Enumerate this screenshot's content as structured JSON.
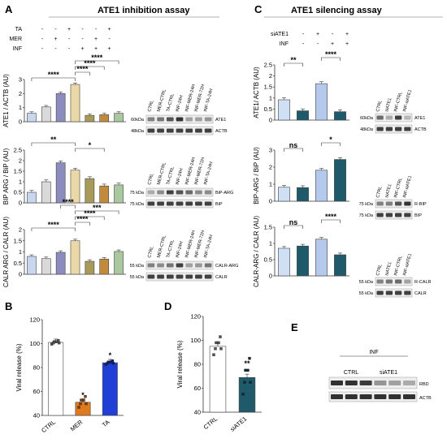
{
  "figure": {
    "panel_labels": {
      "a": "A",
      "b": "B",
      "c": "C",
      "d": "D",
      "e": "E"
    },
    "panel_a": {
      "title": "ATE1 inhibition assay",
      "treatments": [
        {
          "name": "TA",
          "marks": [
            "-",
            "-",
            "+",
            "-",
            "-",
            "+"
          ]
        },
        {
          "name": "MER",
          "marks": [
            "-",
            "+",
            "-",
            "-",
            "+",
            "-"
          ]
        },
        {
          "name": "INF",
          "marks": [
            "-",
            "-",
            "-",
            "+",
            "+",
            "+"
          ]
        }
      ],
      "lane_labels_6": [
        "CTRL",
        "MER-CTRL",
        "TA-CTRL",
        "INF-24H",
        "INF-MER-24H",
        "INF-MER-72H",
        "INF-TA-24H"
      ],
      "lane_labels_7": [
        "CTRL",
        "MER-CTRL",
        "TA-CTRL",
        "INF-24H",
        "INF-MER-24H",
        "INF-MER-72H",
        "INF-TA-24H"
      ],
      "blots": [
        {
          "markers": [
            "60kDa",
            "48kDa"
          ],
          "bands": [
            "ATE1",
            "ACTB"
          ]
        },
        {
          "markers": [
            "75 kDa",
            "75 kDa"
          ],
          "bands": [
            "BiP-ARG",
            "BiP"
          ]
        },
        {
          "markers": [
            "55 kDa",
            "55 kDa"
          ],
          "bands": [
            "CALR-ARG",
            "CALR"
          ]
        }
      ]
    },
    "panel_c": {
      "title": "ATE1 silencing assay",
      "treatments": [
        {
          "name": "siATE1",
          "marks": [
            "-",
            "+",
            "-",
            "+"
          ]
        },
        {
          "name": "INF",
          "marks": [
            "-",
            "-",
            "+",
            "+"
          ]
        }
      ],
      "lane_labels": [
        "CTRL",
        "siATE1",
        "INF-CTRL",
        "INF-siATE1"
      ],
      "blots": [
        {
          "markers": [
            "60kDa",
            "48kDa"
          ],
          "bands": [
            "ATE1",
            "ACTB"
          ]
        },
        {
          "markers": [
            "75 kDa",
            "75 kDa"
          ],
          "bands": [
            "R-BIP",
            "BIP"
          ]
        },
        {
          "markers": [
            "55 kDa",
            "55 kDa"
          ],
          "bands": [
            "R-CALR",
            "CALR"
          ]
        }
      ]
    },
    "panel_e": {
      "group_label": "INF",
      "lanes": [
        "CTRL",
        "siATE1"
      ],
      "bands": [
        "RBD",
        "ACTB"
      ]
    }
  },
  "chart_data": [
    {
      "id": "a1",
      "type": "bar",
      "ylabel": "ATE1 / ACTB (AU)",
      "ylim": [
        0,
        3
      ],
      "yticks": [
        0,
        1,
        2,
        3
      ],
      "values": [
        0.6,
        1.05,
        2.0,
        2.65,
        0.45,
        0.5,
        0.6
      ],
      "colors": [
        "#c9d7ee",
        "#d9d9d9",
        "#8c8cbf",
        "#ead8a8",
        "#a89a58",
        "#c28a3c",
        "#a9c8a0"
      ],
      "annotations": [
        "****",
        "****",
        "****",
        "****"
      ]
    },
    {
      "id": "a2",
      "type": "bar",
      "ylabel": "BIP ARG / BiP (AU)",
      "ylim": [
        0,
        2.5
      ],
      "yticks": [
        0.0,
        0.5,
        1.0,
        1.5,
        2.0,
        2.5
      ],
      "values": [
        0.5,
        1.0,
        1.9,
        1.55,
        1.15,
        0.8,
        0.85
      ],
      "colors": [
        "#c9d7ee",
        "#d9d9d9",
        "#8c8cbf",
        "#ead8a8",
        "#a89a58",
        "#c28a3c",
        "#a9c8a0"
      ],
      "annotations": [
        "**",
        "*"
      ]
    },
    {
      "id": "a3",
      "type": "bar",
      "ylabel": "CALR ARG / CALR (AU)",
      "ylim": [
        0,
        2.0
      ],
      "yticks": [
        0.0,
        0.5,
        1.0,
        1.5,
        2.0
      ],
      "values": [
        0.8,
        0.7,
        0.98,
        1.5,
        0.58,
        0.68,
        1.02
      ],
      "colors": [
        "#c9d7ee",
        "#d9d9d9",
        "#8c8cbf",
        "#ead8a8",
        "#a89a58",
        "#c28a3c",
        "#a9c8a0"
      ],
      "annotations": [
        "****",
        "****",
        "****",
        "***",
        "****"
      ]
    },
    {
      "id": "b",
      "type": "bar",
      "ylabel": "Viral release (%)",
      "categories": [
        "CTRL",
        "MER",
        "TA"
      ],
      "ylim": [
        40,
        120
      ],
      "yticks": [
        40,
        60,
        80,
        100,
        120
      ],
      "values": [
        101,
        51,
        84
      ],
      "colors": [
        "#ffffff",
        "#e07a20",
        "#1f3fd6"
      ],
      "annotations": [
        "*",
        "*"
      ]
    },
    {
      "id": "c1",
      "type": "bar",
      "ylabel": "ATE1/ ACTB (AU)",
      "ylim": [
        0,
        2.5
      ],
      "yticks": [
        0.0,
        0.5,
        1.0,
        1.5,
        2.0,
        2.5
      ],
      "values": [
        0.92,
        0.42,
        1.65,
        0.38
      ],
      "colors": [
        "#cfe0f5",
        "#1f5a6a",
        "#b5c9ec",
        "#1f5a6a"
      ],
      "annotations": [
        "**",
        "****"
      ]
    },
    {
      "id": "c2",
      "type": "bar",
      "ylabel": "BIP-ARG / BiP (AU)",
      "ylim": [
        0,
        3
      ],
      "yticks": [
        0,
        1,
        2,
        3
      ],
      "values": [
        0.82,
        0.8,
        1.82,
        2.45
      ],
      "colors": [
        "#cfe0f5",
        "#1f5a6a",
        "#b5c9ec",
        "#1f5a6a"
      ],
      "annotations": [
        "ns",
        "*"
      ]
    },
    {
      "id": "c3",
      "type": "bar",
      "ylabel": "CALR-ARG / CALR (AU)",
      "ylim": [
        0,
        1.5
      ],
      "yticks": [
        0.0,
        0.5,
        1.0,
        1.5
      ],
      "values": [
        0.85,
        0.92,
        1.13,
        0.65
      ],
      "colors": [
        "#cfe0f5",
        "#1f5a6a",
        "#b5c9ec",
        "#1f5a6a"
      ],
      "annotations": [
        "ns",
        "****"
      ]
    },
    {
      "id": "d",
      "type": "bar",
      "ylabel": "Viral release (%)",
      "categories": [
        "CTRL",
        "siATE1"
      ],
      "ylim": [
        40,
        120
      ],
      "yticks": [
        40,
        60,
        80,
        100,
        120
      ],
      "values": [
        95,
        69
      ],
      "colors": [
        "#ffffff",
        "#1f5a6a"
      ],
      "annotations": [
        "**"
      ]
    }
  ]
}
